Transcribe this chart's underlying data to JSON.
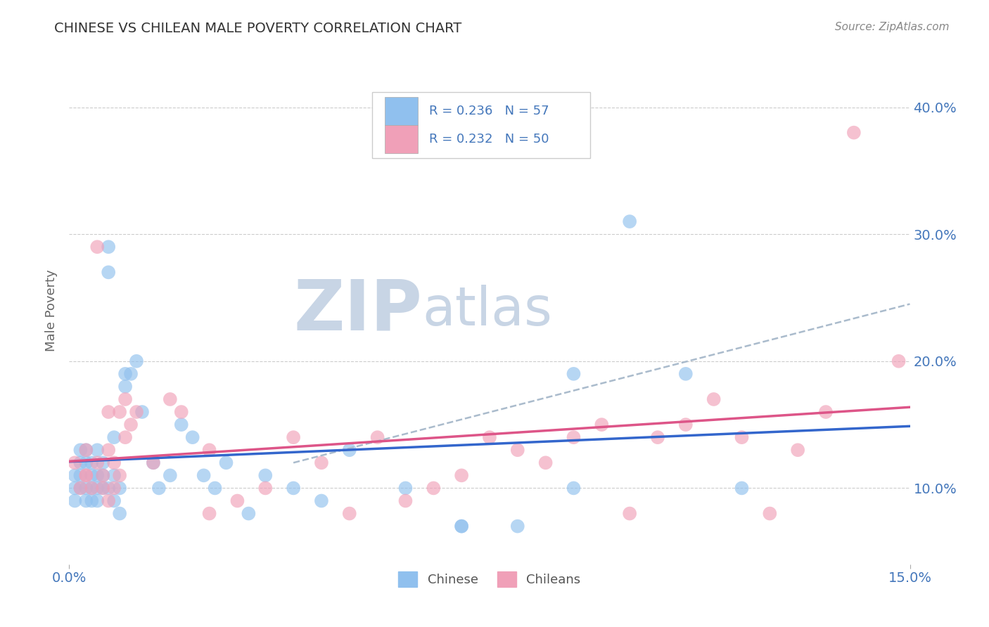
{
  "title": "CHINESE VS CHILEAN MALE POVERTY CORRELATION CHART",
  "source": "Source: ZipAtlas.com",
  "ylabel": "Male Poverty",
  "xlim": [
    0.0,
    0.15
  ],
  "ylim": [
    0.04,
    0.44
  ],
  "x_ticks": [
    0.0,
    0.15
  ],
  "x_tick_labels": [
    "0.0%",
    "15.0%"
  ],
  "y_ticks_right": [
    0.1,
    0.2,
    0.3,
    0.4
  ],
  "y_tick_labels_right": [
    "10.0%",
    "20.0%",
    "30.0%",
    "40.0%"
  ],
  "legend_r1": "R = 0.236",
  "legend_n1": "N = 57",
  "legend_r2": "R = 0.232",
  "legend_n2": "N = 50",
  "chinese_color": "#90C0EE",
  "chilean_color": "#F0A0B8",
  "chinese_line_color": "#3366CC",
  "chilean_line_color": "#DD5588",
  "dashed_line_color": "#AABBCC",
  "watermark_zip_color": "#C8D5E5",
  "watermark_atlas_color": "#C8D5E5",
  "background_color": "#FFFFFF",
  "grid_color": "#CCCCCC",
  "title_color": "#333333",
  "axis_label_color": "#4477BB",
  "chinese_x": [
    0.001,
    0.001,
    0.001,
    0.002,
    0.002,
    0.002,
    0.002,
    0.003,
    0.003,
    0.003,
    0.003,
    0.004,
    0.004,
    0.004,
    0.004,
    0.005,
    0.005,
    0.005,
    0.005,
    0.006,
    0.006,
    0.006,
    0.007,
    0.007,
    0.007,
    0.008,
    0.008,
    0.008,
    0.009,
    0.009,
    0.01,
    0.01,
    0.011,
    0.012,
    0.013,
    0.015,
    0.016,
    0.018,
    0.02,
    0.022,
    0.024,
    0.026,
    0.028,
    0.032,
    0.035,
    0.04,
    0.045,
    0.05,
    0.06,
    0.07,
    0.08,
    0.09,
    0.1,
    0.11,
    0.12,
    0.09,
    0.07
  ],
  "chinese_y": [
    0.1,
    0.11,
    0.09,
    0.12,
    0.1,
    0.11,
    0.13,
    0.1,
    0.09,
    0.12,
    0.13,
    0.1,
    0.11,
    0.09,
    0.12,
    0.13,
    0.1,
    0.11,
    0.09,
    0.1,
    0.11,
    0.12,
    0.29,
    0.27,
    0.1,
    0.14,
    0.11,
    0.09,
    0.1,
    0.08,
    0.19,
    0.18,
    0.19,
    0.2,
    0.16,
    0.12,
    0.1,
    0.11,
    0.15,
    0.14,
    0.11,
    0.1,
    0.12,
    0.08,
    0.11,
    0.1,
    0.09,
    0.13,
    0.1,
    0.07,
    0.07,
    0.1,
    0.31,
    0.19,
    0.1,
    0.19,
    0.07
  ],
  "chilean_x": [
    0.001,
    0.002,
    0.003,
    0.003,
    0.004,
    0.005,
    0.005,
    0.006,
    0.006,
    0.007,
    0.007,
    0.008,
    0.008,
    0.009,
    0.009,
    0.01,
    0.011,
    0.012,
    0.015,
    0.018,
    0.02,
    0.025,
    0.03,
    0.035,
    0.04,
    0.045,
    0.05,
    0.055,
    0.06,
    0.065,
    0.07,
    0.075,
    0.08,
    0.085,
    0.09,
    0.095,
    0.1,
    0.105,
    0.11,
    0.115,
    0.12,
    0.125,
    0.13,
    0.135,
    0.14,
    0.148,
    0.003,
    0.007,
    0.01,
    0.025
  ],
  "chilean_y": [
    0.12,
    0.1,
    0.13,
    0.11,
    0.1,
    0.29,
    0.12,
    0.1,
    0.11,
    0.13,
    0.09,
    0.12,
    0.1,
    0.11,
    0.16,
    0.17,
    0.15,
    0.16,
    0.12,
    0.17,
    0.16,
    0.13,
    0.09,
    0.1,
    0.14,
    0.12,
    0.08,
    0.14,
    0.09,
    0.1,
    0.11,
    0.14,
    0.13,
    0.12,
    0.14,
    0.15,
    0.08,
    0.14,
    0.15,
    0.17,
    0.14,
    0.08,
    0.13,
    0.16,
    0.38,
    0.2,
    0.11,
    0.16,
    0.14,
    0.08
  ]
}
